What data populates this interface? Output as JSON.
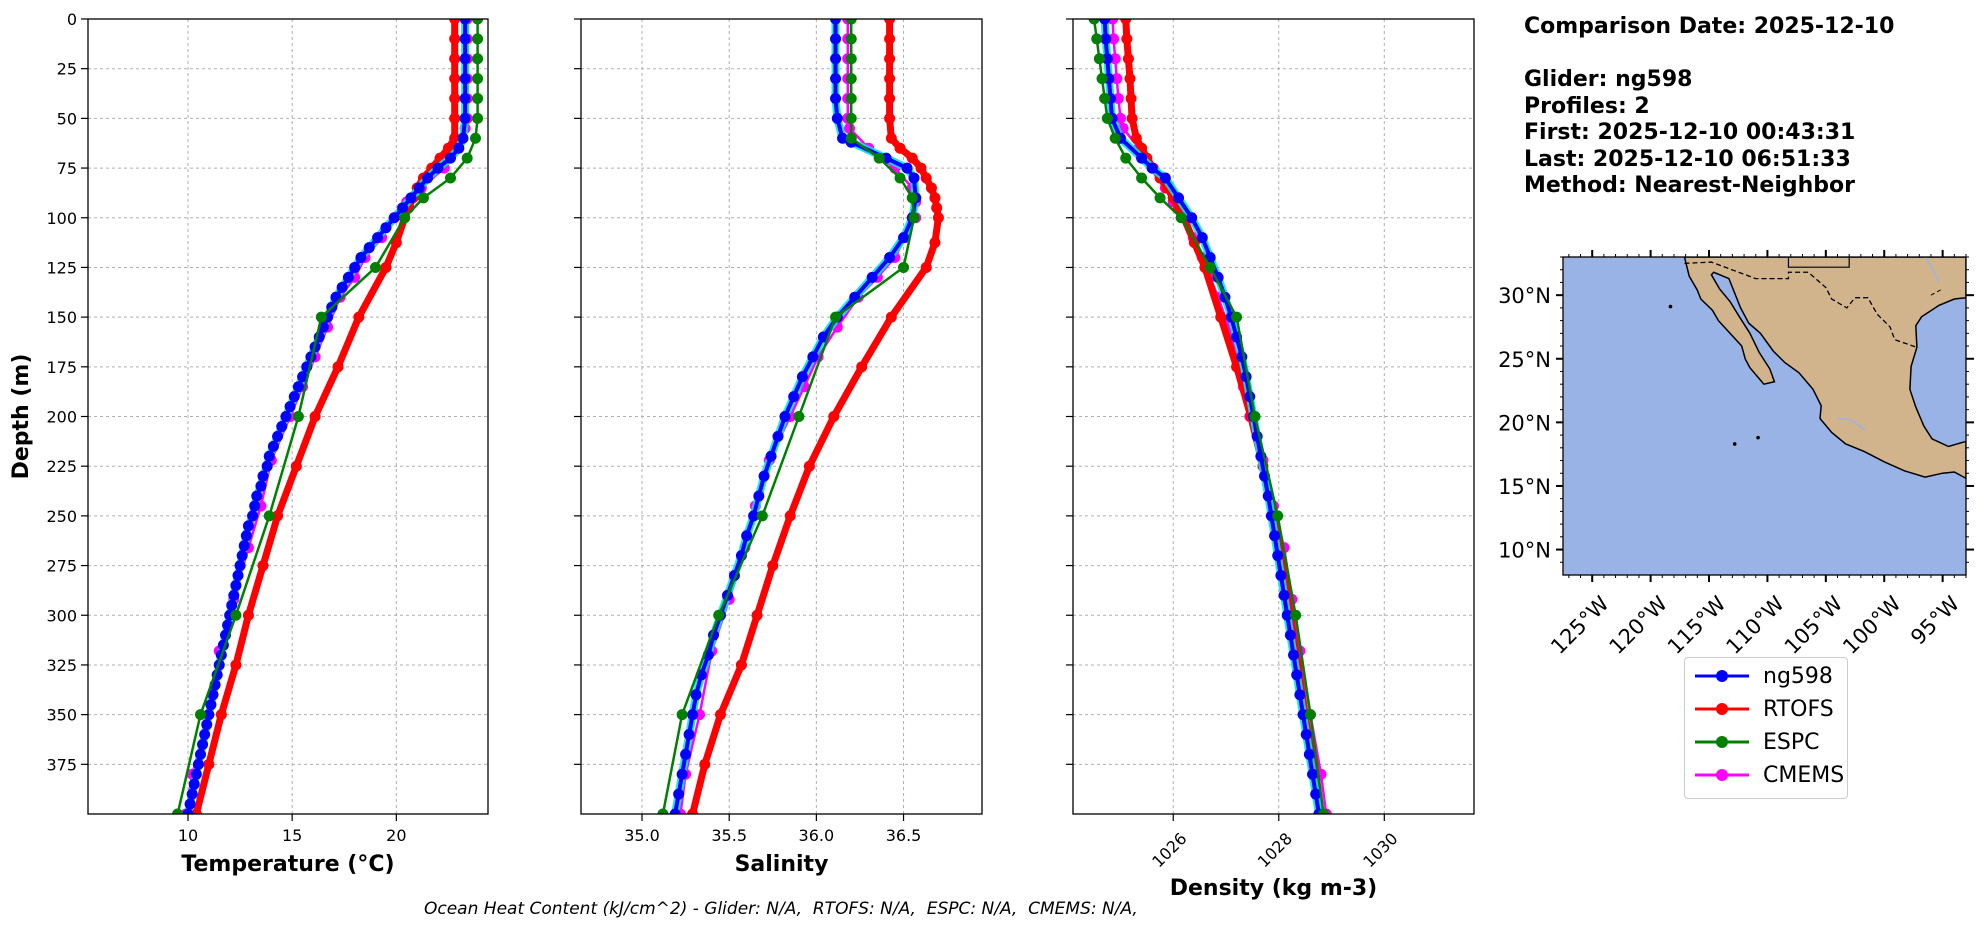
{
  "info": {
    "comparison": "Comparison Date: 2025-12-10",
    "glider": "Glider: ng598",
    "profiles": "Profiles: 2",
    "first": "First: 2025-12-10 00:43:31",
    "last": "Last: 2025-12-10 06:51:33",
    "method": "Method: Nearest-Neighbor"
  },
  "footer": "Ocean Heat Content (kJ/cm^2) - Glider: N/A,  RTOFS: N/A,  ESPC: N/A,  CMEMS: N/A,",
  "legend": [
    {
      "name": "ng598",
      "color": "#0000ff"
    },
    {
      "name": "RTOFS",
      "color": "#ff0000"
    },
    {
      "name": "ESPC",
      "color": "#008000"
    },
    {
      "name": "CMEMS",
      "color": "#ff00ff"
    }
  ],
  "chart_data": [
    {
      "type": "line",
      "xlabel": "Temperature (°C)",
      "ylabel": "Depth (m)",
      "xlim": [
        5.2,
        24.4
      ],
      "ylim": [
        400,
        0
      ],
      "xticks": [
        10,
        15,
        20
      ],
      "yticks": [
        0,
        25,
        50,
        75,
        100,
        125,
        150,
        175,
        200,
        225,
        250,
        275,
        300,
        325,
        350,
        375
      ],
      "grid": true,
      "series": [
        {
          "name": "ng598",
          "color": "#0000ff",
          "depth": [
            0,
            10,
            20,
            30,
            40,
            50,
            60,
            65,
            70,
            75,
            80,
            85,
            90,
            95,
            100,
            105,
            110,
            115,
            120,
            125,
            130,
            135,
            140,
            145,
            150,
            155,
            160,
            165,
            170,
            175,
            180,
            185,
            190,
            195,
            200,
            205,
            210,
            215,
            220,
            225,
            230,
            235,
            240,
            245,
            250,
            255,
            260,
            265,
            270,
            275,
            280,
            285,
            290,
            295,
            300,
            305,
            310,
            315,
            320,
            325,
            330,
            335,
            340,
            345,
            350,
            355,
            360,
            365,
            370,
            375,
            380,
            385,
            390,
            395,
            400
          ],
          "values": [
            23.3,
            23.3,
            23.3,
            23.3,
            23.3,
            23.3,
            23.2,
            23.0,
            22.6,
            22.0,
            21.5,
            21.1,
            20.7,
            20.3,
            19.9,
            19.5,
            19.1,
            18.7,
            18.3,
            18.0,
            17.7,
            17.4,
            17.1,
            16.9,
            16.7,
            16.5,
            16.3,
            16.1,
            15.9,
            15.7,
            15.5,
            15.3,
            15.1,
            14.9,
            14.7,
            14.5,
            14.3,
            14.1,
            13.9,
            13.8,
            13.6,
            13.5,
            13.3,
            13.2,
            13.1,
            12.9,
            12.8,
            12.7,
            12.6,
            12.5,
            12.4,
            12.3,
            12.2,
            12.1,
            12.0,
            11.9,
            11.8,
            11.7,
            11.6,
            11.5,
            11.4,
            11.3,
            11.2,
            11.1,
            11.0,
            10.9,
            10.8,
            10.7,
            10.6,
            10.5,
            10.4,
            10.3,
            10.2,
            10.1,
            10.0
          ]
        },
        {
          "name": "RTOFS",
          "color": "#ff0000",
          "depth": [
            0,
            10,
            20,
            30,
            40,
            50,
            60,
            65,
            70,
            75,
            80,
            85,
            90,
            95,
            100,
            112.5,
            125,
            150,
            175,
            200,
            225,
            250,
            275,
            300,
            325,
            350,
            375,
            400
          ],
          "values": [
            22.8,
            22.8,
            22.8,
            22.8,
            22.8,
            22.8,
            22.8,
            22.5,
            22.1,
            21.7,
            21.3,
            21.0,
            20.8,
            20.6,
            20.4,
            20.0,
            19.5,
            18.2,
            17.2,
            16.1,
            15.2,
            14.3,
            13.6,
            12.9,
            12.3,
            11.6,
            11.0,
            10.4
          ]
        },
        {
          "name": "ESPC",
          "color": "#008000",
          "depth": [
            0,
            10,
            20,
            30,
            40,
            50,
            60,
            70,
            80,
            90,
            100,
            125,
            150,
            200,
            250,
            300,
            350,
            400
          ],
          "values": [
            23.9,
            23.9,
            23.9,
            23.9,
            23.9,
            23.9,
            23.8,
            23.4,
            22.6,
            21.3,
            20.4,
            19.0,
            16.4,
            15.3,
            13.9,
            12.3,
            10.6,
            9.5
          ]
        },
        {
          "name": "CMEMS",
          "color": "#ff00ff",
          "depth": [
            0,
            10,
            20,
            30,
            40,
            50,
            55,
            65,
            75,
            85,
            92,
            100,
            110,
            120,
            130,
            140,
            155,
            170,
            185,
            200,
            222,
            245,
            266,
            292,
            318,
            350,
            380,
            400
          ],
          "values": [
            23.4,
            23.4,
            23.4,
            23.4,
            23.4,
            23.4,
            23.3,
            22.9,
            22.3,
            21.2,
            20.5,
            19.9,
            19.3,
            18.5,
            18.0,
            17.3,
            16.7,
            16.1,
            15.5,
            14.9,
            14.0,
            13.5,
            12.9,
            12.2,
            11.5,
            11.0,
            10.2,
            9.9
          ]
        }
      ]
    },
    {
      "type": "line",
      "xlabel": "Salinity",
      "ylim": [
        400,
        0
      ],
      "xlim": [
        34.65,
        36.95
      ],
      "xticks": [
        35.0,
        35.5,
        36.0,
        36.5
      ],
      "grid": true,
      "series": [
        {
          "name": "ng598",
          "color": "#0000ff",
          "depth": [
            0,
            10,
            20,
            30,
            40,
            50,
            60,
            62,
            70,
            75,
            80,
            90,
            100,
            110,
            120,
            130,
            140,
            150,
            160,
            170,
            180,
            190,
            200,
            210,
            220,
            230,
            240,
            250,
            260,
            270,
            280,
            290,
            300,
            310,
            320,
            330,
            340,
            350,
            360,
            370,
            380,
            390,
            400
          ],
          "values": [
            36.11,
            36.11,
            36.11,
            36.11,
            36.11,
            36.12,
            36.15,
            36.2,
            36.4,
            36.52,
            36.56,
            36.57,
            36.55,
            36.5,
            36.42,
            36.32,
            36.22,
            36.12,
            36.04,
            35.98,
            35.92,
            35.87,
            35.82,
            35.78,
            35.74,
            35.7,
            35.67,
            35.64,
            35.6,
            35.57,
            35.53,
            35.49,
            35.45,
            35.41,
            35.38,
            35.34,
            35.31,
            35.29,
            35.27,
            35.25,
            35.23,
            35.21,
            35.19
          ]
        },
        {
          "name": "RTOFS",
          "color": "#ff0000",
          "depth": [
            0,
            10,
            20,
            30,
            40,
            50,
            60,
            65,
            70,
            75,
            80,
            85,
            90,
            95,
            100,
            112.5,
            125,
            150,
            175,
            200,
            225,
            250,
            275,
            300,
            325,
            350,
            375,
            400
          ],
          "values": [
            36.42,
            36.42,
            36.42,
            36.42,
            36.42,
            36.42,
            36.43,
            36.48,
            36.55,
            36.6,
            36.63,
            36.66,
            36.68,
            36.69,
            36.7,
            36.68,
            36.63,
            36.43,
            36.26,
            36.1,
            35.96,
            35.85,
            35.75,
            35.66,
            35.57,
            35.45,
            35.36,
            35.29
          ]
        },
        {
          "name": "ESPC",
          "color": "#008000",
          "depth": [
            0,
            10,
            20,
            30,
            40,
            50,
            60,
            70,
            80,
            90,
            100,
            125,
            150,
            200,
            250,
            300,
            350,
            400
          ],
          "values": [
            36.2,
            36.2,
            36.2,
            36.2,
            36.2,
            36.2,
            36.2,
            36.36,
            36.48,
            36.55,
            36.56,
            36.5,
            36.11,
            35.9,
            35.69,
            35.44,
            35.23,
            35.12
          ]
        },
        {
          "name": "CMEMS",
          "color": "#ff00ff",
          "depth": [
            0,
            10,
            20,
            30,
            40,
            50,
            55,
            65,
            75,
            85,
            92,
            100,
            110,
            120,
            130,
            140,
            155,
            170,
            185,
            200,
            222,
            245,
            266,
            292,
            318,
            350,
            380,
            400
          ],
          "values": [
            36.18,
            36.18,
            36.18,
            36.18,
            36.18,
            36.18,
            36.19,
            36.3,
            36.45,
            36.55,
            36.57,
            36.57,
            36.51,
            36.45,
            36.35,
            36.24,
            36.12,
            36.01,
            35.93,
            35.85,
            35.73,
            35.65,
            35.59,
            35.5,
            35.4,
            35.33,
            35.25,
            35.22
          ]
        }
      ]
    },
    {
      "type": "line",
      "xlabel": "Density (kg m-3)",
      "ylim": [
        400,
        0
      ],
      "xlim": [
        1024.1,
        1031.7
      ],
      "xticks": [
        1026,
        1028,
        1030
      ],
      "grid": true,
      "series": [
        {
          "name": "ng598",
          "color": "#0000ff",
          "depth": [
            0,
            10,
            20,
            30,
            40,
            50,
            60,
            70,
            75,
            80,
            90,
            100,
            110,
            120,
            130,
            140,
            150,
            160,
            170,
            180,
            190,
            200,
            210,
            220,
            230,
            240,
            250,
            260,
            270,
            280,
            290,
            300,
            310,
            320,
            330,
            340,
            350,
            360,
            370,
            380,
            390,
            400
          ],
          "values": [
            1024.7,
            1024.72,
            1024.75,
            1024.78,
            1024.81,
            1024.84,
            1025.0,
            1025.4,
            1025.6,
            1025.85,
            1026.1,
            1026.35,
            1026.55,
            1026.7,
            1026.85,
            1026.98,
            1027.1,
            1027.2,
            1027.3,
            1027.38,
            1027.45,
            1027.52,
            1027.59,
            1027.66,
            1027.73,
            1027.8,
            1027.86,
            1027.92,
            1027.98,
            1028.04,
            1028.1,
            1028.16,
            1028.22,
            1028.28,
            1028.34,
            1028.4,
            1028.46,
            1028.52,
            1028.58,
            1028.64,
            1028.7,
            1028.76
          ]
        },
        {
          "name": "RTOFS",
          "color": "#ff0000",
          "depth": [
            0,
            10,
            20,
            30,
            40,
            50,
            60,
            65,
            70,
            75,
            80,
            85,
            90,
            95,
            100,
            112.5,
            125,
            150,
            175,
            200,
            225,
            250,
            275,
            300,
            325,
            350,
            375,
            400
          ],
          "values": [
            1025.1,
            1025.12,
            1025.15,
            1025.18,
            1025.2,
            1025.22,
            1025.3,
            1025.4,
            1025.5,
            1025.62,
            1025.75,
            1025.88,
            1026.0,
            1026.1,
            1026.2,
            1026.4,
            1026.6,
            1026.9,
            1027.2,
            1027.47,
            1027.7,
            1027.9,
            1028.07,
            1028.22,
            1028.36,
            1028.5,
            1028.65,
            1028.8
          ]
        },
        {
          "name": "ESPC",
          "color": "#008000",
          "depth": [
            0,
            10,
            20,
            30,
            40,
            50,
            60,
            70,
            80,
            90,
            100,
            125,
            150,
            200,
            250,
            300,
            350,
            400
          ],
          "values": [
            1024.5,
            1024.55,
            1024.6,
            1024.65,
            1024.7,
            1024.75,
            1024.9,
            1025.1,
            1025.4,
            1025.75,
            1026.15,
            1026.7,
            1027.2,
            1027.55,
            1027.98,
            1028.32,
            1028.6,
            1028.85
          ]
        },
        {
          "name": "CMEMS",
          "color": "#ff00ff",
          "depth": [
            0,
            10,
            20,
            30,
            40,
            50,
            55,
            65,
            75,
            85,
            92,
            100,
            110,
            120,
            130,
            140,
            155,
            170,
            185,
            200,
            222,
            245,
            266,
            292,
            318,
            350,
            380,
            400
          ],
          "values": [
            1024.85,
            1024.87,
            1024.9,
            1024.93,
            1024.96,
            1025.0,
            1025.05,
            1025.35,
            1025.6,
            1025.85,
            1026.0,
            1026.2,
            1026.38,
            1026.55,
            1026.7,
            1026.85,
            1027.05,
            1027.2,
            1027.33,
            1027.45,
            1027.7,
            1027.9,
            1028.1,
            1028.25,
            1028.4,
            1028.6,
            1028.8,
            1028.9
          ]
        }
      ]
    }
  ],
  "map": {
    "lat_labels": [
      "30°N",
      "25°N",
      "20°N",
      "15°N",
      "10°N"
    ],
    "lon_labels": [
      "125°W",
      "120°W",
      "115°W",
      "110°W",
      "105°W",
      "100°W",
      "95°W"
    ],
    "ocean_color": "#99b3e6",
    "land_color": "#d2b48c"
  }
}
